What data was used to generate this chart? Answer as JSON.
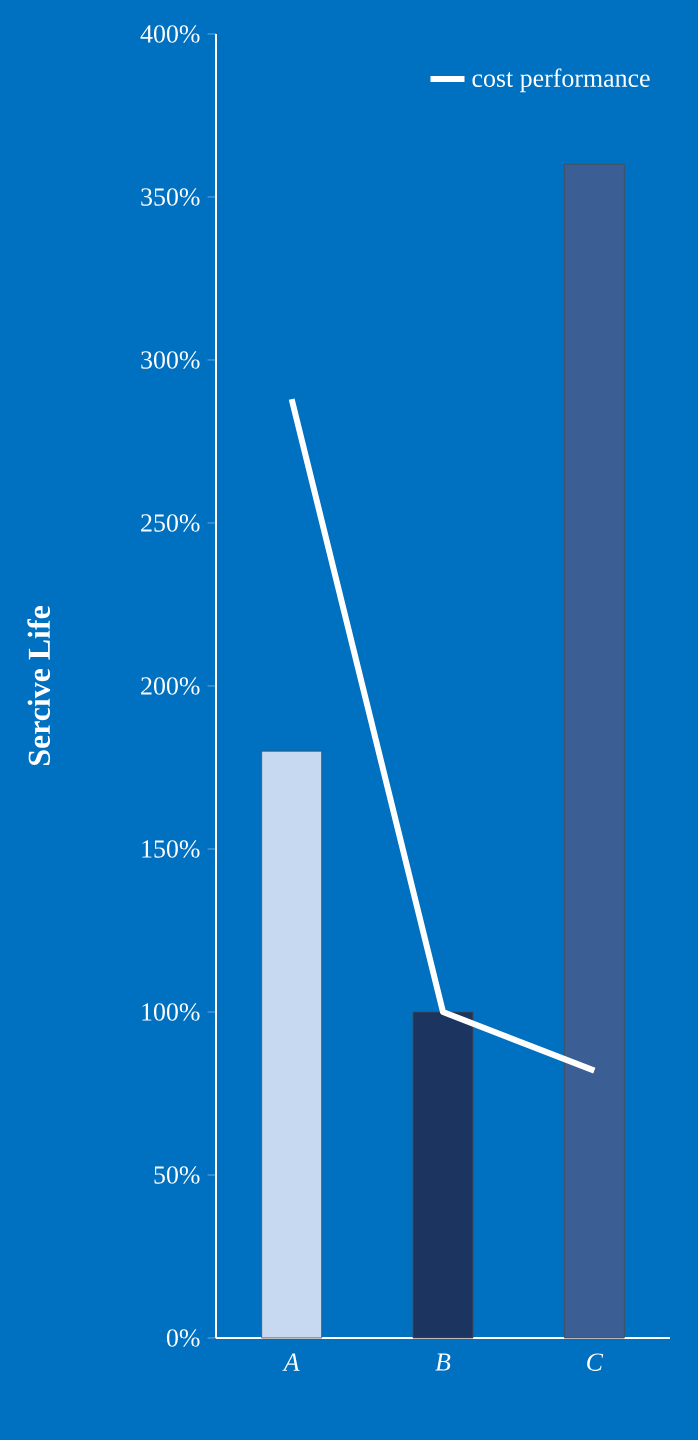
{
  "chart_data": {
    "type": "bar",
    "ylabel": "Sercive Life",
    "categories": [
      "A",
      "B",
      "C"
    ],
    "series": [
      {
        "type": "bar",
        "colors": [
          "#c6d9f1",
          "#1c3560",
          "#3b5f95"
        ],
        "values": [
          180,
          100,
          360
        ]
      },
      {
        "type": "line",
        "name": "cost performance",
        "color": "#ffffff",
        "values": [
          288,
          100,
          82
        ]
      }
    ],
    "ylim": [
      0,
      400
    ],
    "yticks": [
      {
        "value": 0,
        "label": "0%"
      },
      {
        "value": 50,
        "label": "50%"
      },
      {
        "value": 100,
        "label": "100%"
      },
      {
        "value": 150,
        "label": "150%"
      },
      {
        "value": 200,
        "label": "200%"
      },
      {
        "value": 250,
        "label": "250%"
      },
      {
        "value": 300,
        "label": "300%"
      },
      {
        "value": 350,
        "label": "350%"
      },
      {
        "value": 400,
        "label": "400%"
      }
    ],
    "legend": "top right",
    "grid": false,
    "marker": "none",
    "line_style": "solid"
  }
}
